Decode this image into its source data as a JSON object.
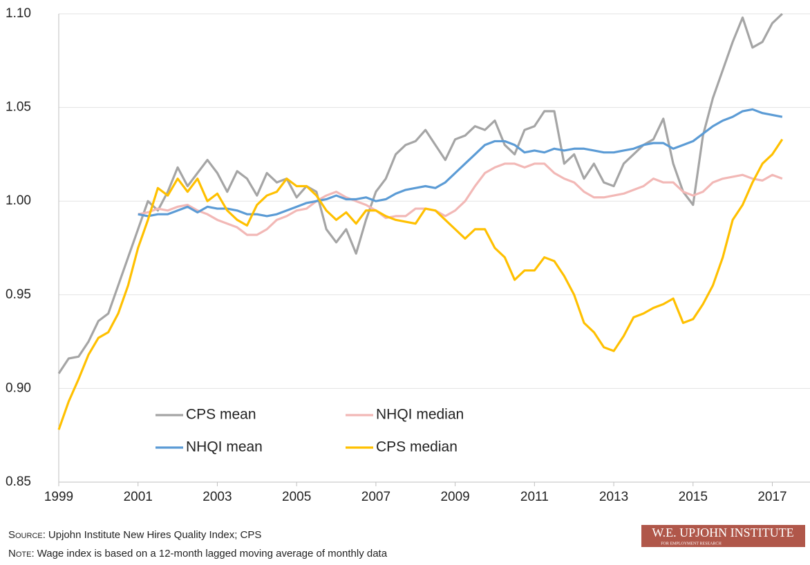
{
  "chart_data": {
    "type": "line",
    "xlim": [
      1999,
      2017.95
    ],
    "xticks": [
      1999,
      2001,
      2003,
      2005,
      2007,
      2009,
      2011,
      2013,
      2015,
      2017
    ],
    "ylim": [
      0.85,
      1.1
    ],
    "yticks": [
      0.85,
      {
        "value": 0.9,
        "label": "0.90"
      },
      0.95,
      {
        "value": 1.0,
        "label": "1.00"
      },
      1.05,
      {
        "value": 1.1,
        "label": "1.10"
      }
    ],
    "grid": true,
    "legend": "lower left",
    "series": [
      {
        "name": "CPS mean",
        "color": "#a5a5a5",
        "x": [
          1999,
          1999.25,
          1999.5,
          1999.75,
          2000,
          2000.25,
          2000.5,
          2000.75,
          2001,
          2001.25,
          2001.5,
          2001.75,
          2002,
          2002.25,
          2002.5,
          2002.75,
          2003,
          2003.25,
          2003.5,
          2003.75,
          2004,
          2004.25,
          2004.5,
          2004.75,
          2005,
          2005.25,
          2005.5,
          2005.75,
          2006,
          2006.25,
          2006.5,
          2006.75,
          2007,
          2007.25,
          2007.5,
          2007.75,
          2008,
          2008.25,
          2008.5,
          2008.75,
          2009,
          2009.25,
          2009.5,
          2009.75,
          2010,
          2010.25,
          2010.5,
          2010.75,
          2011,
          2011.25,
          2011.5,
          2011.75,
          2012,
          2012.25,
          2012.5,
          2012.75,
          2013,
          2013.25,
          2013.5,
          2013.75,
          2014,
          2014.25,
          2014.5,
          2014.75,
          2015,
          2015.25,
          2015.5,
          2015.75,
          2016,
          2016.25,
          2016.5,
          2016.75,
          2017,
          2017.25
        ],
        "values": [
          0.908,
          0.916,
          0.917,
          0.925,
          0.936,
          0.94,
          0.955,
          0.97,
          0.985,
          1.0,
          0.995,
          1.005,
          1.018,
          1.008,
          1.015,
          1.022,
          1.015,
          1.005,
          1.016,
          1.012,
          1.003,
          1.015,
          1.01,
          1.012,
          1.002,
          1.008,
          1.005,
          0.985,
          0.978,
          0.985,
          0.972,
          0.99,
          1.005,
          1.012,
          1.025,
          1.03,
          1.032,
          1.038,
          1.03,
          1.022,
          1.033,
          1.035,
          1.04,
          1.038,
          1.043,
          1.03,
          1.025,
          1.038,
          1.04,
          1.048,
          1.048,
          1.02,
          1.025,
          1.012,
          1.02,
          1.01,
          1.008,
          1.02,
          1.025,
          1.03,
          1.033,
          1.044,
          1.02,
          1.005,
          0.998,
          1.035,
          1.055,
          1.07,
          1.085,
          1.098,
          1.082,
          1.085,
          1.095,
          1.1
        ]
      },
      {
        "name": "NHQI median",
        "color": "#f2b8b6",
        "x": [
          2001,
          2001.25,
          2001.5,
          2001.75,
          2002,
          2002.25,
          2002.5,
          2002.75,
          2003,
          2003.25,
          2003.5,
          2003.75,
          2004,
          2004.25,
          2004.5,
          2004.75,
          2005,
          2005.25,
          2005.5,
          2005.75,
          2006,
          2006.25,
          2006.5,
          2006.75,
          2007,
          2007.25,
          2007.5,
          2007.75,
          2008,
          2008.25,
          2008.5,
          2008.75,
          2009,
          2009.25,
          2009.5,
          2009.75,
          2010,
          2010.25,
          2010.5,
          2010.75,
          2011,
          2011.25,
          2011.5,
          2011.75,
          2012,
          2012.25,
          2012.5,
          2012.75,
          2013,
          2013.25,
          2013.5,
          2013.75,
          2014,
          2014.25,
          2014.5,
          2014.75,
          2015,
          2015.25,
          2015.5,
          2015.75,
          2016,
          2016.25,
          2016.5,
          2016.75,
          2017,
          2017.25
        ],
        "values": [
          0.993,
          0.994,
          0.996,
          0.995,
          0.997,
          0.998,
          0.995,
          0.993,
          0.99,
          0.988,
          0.986,
          0.982,
          0.982,
          0.985,
          0.99,
          0.992,
          0.995,
          0.996,
          1.0,
          1.003,
          1.005,
          1.002,
          1.0,
          0.998,
          0.995,
          0.991,
          0.992,
          0.992,
          0.996,
          0.996,
          0.995,
          0.992,
          0.995,
          1.0,
          1.008,
          1.015,
          1.018,
          1.02,
          1.02,
          1.018,
          1.02,
          1.02,
          1.015,
          1.012,
          1.01,
          1.005,
          1.002,
          1.002,
          1.003,
          1.004,
          1.006,
          1.008,
          1.012,
          1.01,
          1.01,
          1.005,
          1.003,
          1.005,
          1.01,
          1.012,
          1.013,
          1.014,
          1.012,
          1.011,
          1.014,
          1.012
        ]
      },
      {
        "name": "NHQI mean",
        "color": "#5b9bd5",
        "x": [
          2001,
          2001.25,
          2001.5,
          2001.75,
          2002,
          2002.25,
          2002.5,
          2002.75,
          2003,
          2003.25,
          2003.5,
          2003.75,
          2004,
          2004.25,
          2004.5,
          2004.75,
          2005,
          2005.25,
          2005.5,
          2005.75,
          2006,
          2006.25,
          2006.5,
          2006.75,
          2007,
          2007.25,
          2007.5,
          2007.75,
          2008,
          2008.25,
          2008.5,
          2008.75,
          2009,
          2009.25,
          2009.5,
          2009.75,
          2010,
          2010.25,
          2010.5,
          2010.75,
          2011,
          2011.25,
          2011.5,
          2011.75,
          2012,
          2012.25,
          2012.5,
          2012.75,
          2013,
          2013.25,
          2013.5,
          2013.75,
          2014,
          2014.25,
          2014.5,
          2014.75,
          2015,
          2015.25,
          2015.5,
          2015.75,
          2016,
          2016.25,
          2016.5,
          2016.75,
          2017,
          2017.25
        ],
        "values": [
          0.993,
          0.992,
          0.993,
          0.993,
          0.995,
          0.997,
          0.994,
          0.997,
          0.996,
          0.996,
          0.995,
          0.993,
          0.993,
          0.992,
          0.993,
          0.995,
          0.997,
          0.999,
          1.0,
          1.001,
          1.003,
          1.001,
          1.001,
          1.002,
          1.0,
          1.001,
          1.004,
          1.006,
          1.007,
          1.008,
          1.007,
          1.01,
          1.015,
          1.02,
          1.025,
          1.03,
          1.032,
          1.032,
          1.03,
          1.026,
          1.027,
          1.026,
          1.028,
          1.027,
          1.028,
          1.028,
          1.027,
          1.026,
          1.026,
          1.027,
          1.028,
          1.03,
          1.031,
          1.031,
          1.028,
          1.03,
          1.032,
          1.036,
          1.04,
          1.043,
          1.045,
          1.048,
          1.049,
          1.047,
          1.046,
          1.045
        ]
      },
      {
        "name": "CPS median",
        "color": "#ffc000",
        "x": [
          1999,
          1999.25,
          1999.5,
          1999.75,
          2000,
          2000.25,
          2000.5,
          2000.75,
          2001,
          2001.25,
          2001.5,
          2001.75,
          2002,
          2002.25,
          2002.5,
          2002.75,
          2003,
          2003.25,
          2003.5,
          2003.75,
          2004,
          2004.25,
          2004.5,
          2004.75,
          2005,
          2005.25,
          2005.5,
          2005.75,
          2006,
          2006.25,
          2006.5,
          2006.75,
          2007,
          2007.25,
          2007.5,
          2007.75,
          2008,
          2008.25,
          2008.5,
          2008.75,
          2009,
          2009.25,
          2009.5,
          2009.75,
          2010,
          2010.25,
          2010.5,
          2010.75,
          2011,
          2011.25,
          2011.5,
          2011.75,
          2012,
          2012.25,
          2012.5,
          2012.75,
          2013,
          2013.25,
          2013.5,
          2013.75,
          2014,
          2014.25,
          2014.5,
          2014.75,
          2015,
          2015.25,
          2015.5,
          2015.75,
          2016,
          2016.25,
          2016.5,
          2016.75,
          2017,
          2017.25
        ],
        "values": [
          0.878,
          0.893,
          0.905,
          0.918,
          0.927,
          0.93,
          0.94,
          0.955,
          0.975,
          0.99,
          1.007,
          1.003,
          1.012,
          1.005,
          1.012,
          1.0,
          1.004,
          0.995,
          0.99,
          0.987,
          0.998,
          1.003,
          1.005,
          1.012,
          1.008,
          1.008,
          1.003,
          0.995,
          0.99,
          0.994,
          0.988,
          0.995,
          0.995,
          0.992,
          0.99,
          0.989,
          0.988,
          0.996,
          0.995,
          0.99,
          0.985,
          0.98,
          0.985,
          0.985,
          0.975,
          0.97,
          0.958,
          0.963,
          0.963,
          0.97,
          0.968,
          0.96,
          0.95,
          0.935,
          0.93,
          0.922,
          0.92,
          0.928,
          0.938,
          0.94,
          0.943,
          0.945,
          0.948,
          0.935,
          0.937,
          0.945,
          0.955,
          0.97,
          0.99,
          0.998,
          1.01,
          1.02,
          1.025,
          1.033
        ]
      }
    ]
  },
  "footer": {
    "source_label": "Source:",
    "source": "Upjohn Institute New Hires Quality Index; CPS",
    "note_label": "Note:",
    "note": "Wage index is based on a 12-month lagged moving average of monthly data"
  },
  "logo": {
    "title": "W.E. UPJOHN INSTITUTE",
    "subtitle": "FOR EMPLOYMENT RESEARCH"
  }
}
